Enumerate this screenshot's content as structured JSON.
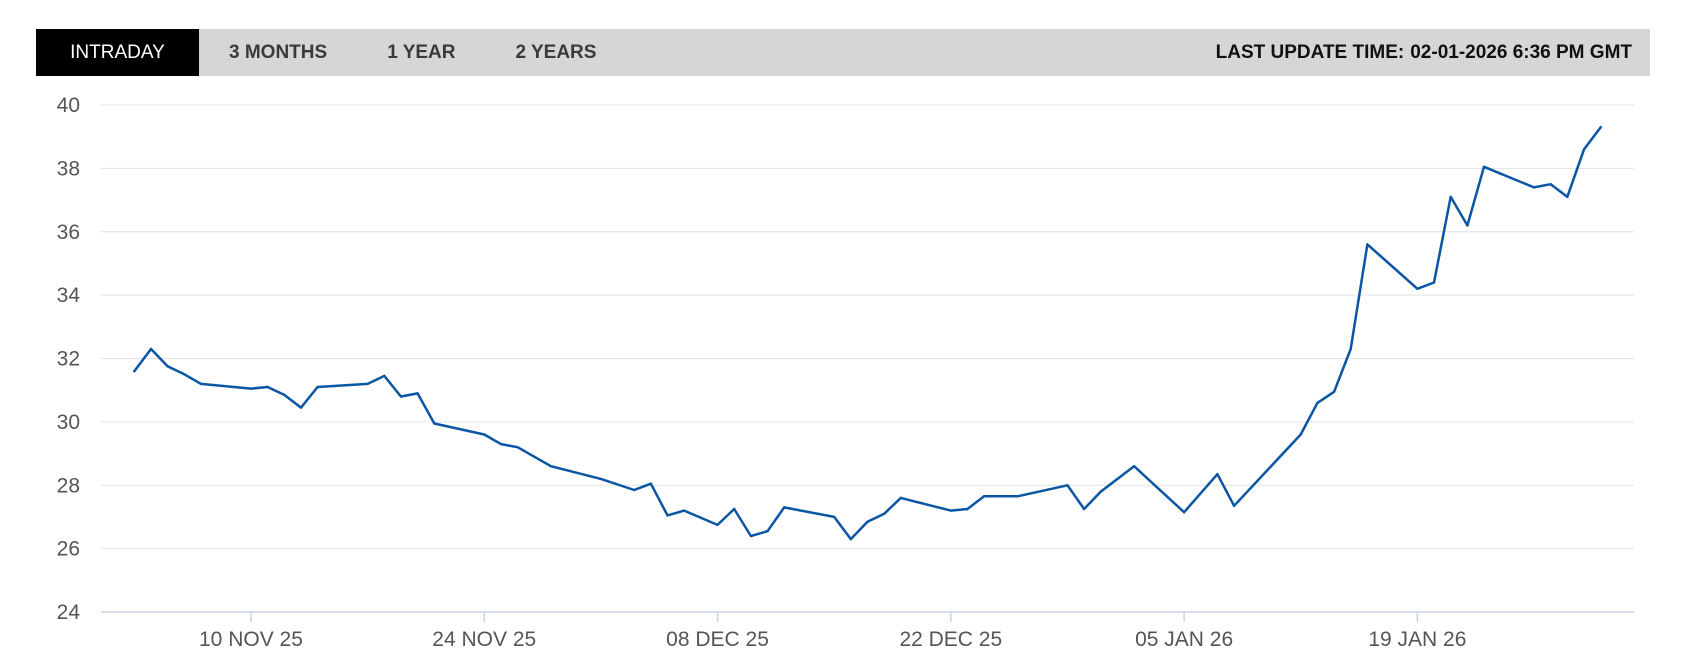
{
  "tabs": [
    {
      "label": "INTRADAY",
      "active": true
    },
    {
      "label": "3 MONTHS",
      "active": false
    },
    {
      "label": "1 YEAR",
      "active": false
    },
    {
      "label": "2 YEARS",
      "active": false
    }
  ],
  "last_update": {
    "label": "LAST UPDATE TIME:",
    "value": "02-01-2026 6:36 PM GMT"
  },
  "colors": {
    "line": "#0b56a4",
    "grid": "#e3e3e3",
    "axis": "#c9d3e6",
    "tabbar_bg": "#d6d6d6",
    "active_tab_bg": "#000000"
  },
  "chart_data": {
    "type": "line",
    "title": "",
    "xlabel": "",
    "ylabel": "",
    "ylim": [
      24,
      40
    ],
    "yticks": [
      24,
      26,
      28,
      30,
      32,
      34,
      36,
      38,
      40
    ],
    "xlim": [
      "2025-11-01",
      "2026-02-01"
    ],
    "xticks": [
      {
        "date": "2025-11-10",
        "label": "10 NOV 25"
      },
      {
        "date": "2025-11-24",
        "label": "24 NOV 25"
      },
      {
        "date": "2025-12-08",
        "label": "08 DEC 25"
      },
      {
        "date": "2025-12-22",
        "label": "22 DEC 25"
      },
      {
        "date": "2026-01-05",
        "label": "05 JAN 26"
      },
      {
        "date": "2026-01-19",
        "label": "19 JAN 26"
      }
    ],
    "grid": true,
    "series": [
      {
        "points": [
          [
            "2025-11-03",
            31.6
          ],
          [
            "2025-11-04",
            32.3
          ],
          [
            "2025-11-05",
            31.75
          ],
          [
            "2025-11-06",
            31.5
          ],
          [
            "2025-11-07",
            31.2
          ],
          [
            "2025-11-10",
            31.05
          ],
          [
            "2025-11-11",
            31.1
          ],
          [
            "2025-11-12",
            30.85
          ],
          [
            "2025-11-13",
            30.45
          ],
          [
            "2025-11-14",
            31.1
          ],
          [
            "2025-11-17",
            31.2
          ],
          [
            "2025-11-18",
            31.45
          ],
          [
            "2025-11-19",
            30.8
          ],
          [
            "2025-11-20",
            30.9
          ],
          [
            "2025-11-21",
            29.95
          ],
          [
            "2025-11-24",
            29.6
          ],
          [
            "2025-11-25",
            29.3
          ],
          [
            "2025-11-26",
            29.2
          ],
          [
            "2025-11-28",
            28.6
          ],
          [
            "2025-12-01",
            28.2
          ],
          [
            "2025-12-03",
            27.85
          ],
          [
            "2025-12-04",
            28.05
          ],
          [
            "2025-12-05",
            27.05
          ],
          [
            "2025-12-06",
            27.2
          ],
          [
            "2025-12-08",
            26.75
          ],
          [
            "2025-12-09",
            27.25
          ],
          [
            "2025-12-10",
            26.4
          ],
          [
            "2025-12-11",
            26.55
          ],
          [
            "2025-12-12",
            27.3
          ],
          [
            "2025-12-15",
            27.0
          ],
          [
            "2025-12-16",
            26.3
          ],
          [
            "2025-12-17",
            26.85
          ],
          [
            "2025-12-18",
            27.1
          ],
          [
            "2025-12-19",
            27.6
          ],
          [
            "2025-12-22",
            27.2
          ],
          [
            "2025-12-23",
            27.25
          ],
          [
            "2025-12-24",
            27.65
          ],
          [
            "2025-12-26",
            27.65
          ],
          [
            "2025-12-29",
            28.0
          ],
          [
            "2025-12-30",
            27.25
          ],
          [
            "2025-12-31",
            27.8
          ],
          [
            "2026-01-02",
            28.6
          ],
          [
            "2026-01-05",
            27.15
          ],
          [
            "2026-01-07",
            28.35
          ],
          [
            "2026-01-08",
            27.35
          ],
          [
            "2026-01-12",
            29.6
          ],
          [
            "2026-01-13",
            30.6
          ],
          [
            "2026-01-14",
            30.95
          ],
          [
            "2026-01-15",
            32.3
          ],
          [
            "2026-01-16",
            35.6
          ],
          [
            "2026-01-19",
            34.2
          ],
          [
            "2026-01-20",
            34.4
          ],
          [
            "2026-01-21",
            37.1
          ],
          [
            "2026-01-22",
            36.2
          ],
          [
            "2026-01-23",
            38.05
          ],
          [
            "2026-01-26",
            37.4
          ],
          [
            "2026-01-27",
            37.5
          ],
          [
            "2026-01-28",
            37.1
          ],
          [
            "2026-01-29",
            38.6
          ],
          [
            "2026-01-30",
            39.3
          ]
        ]
      }
    ]
  }
}
